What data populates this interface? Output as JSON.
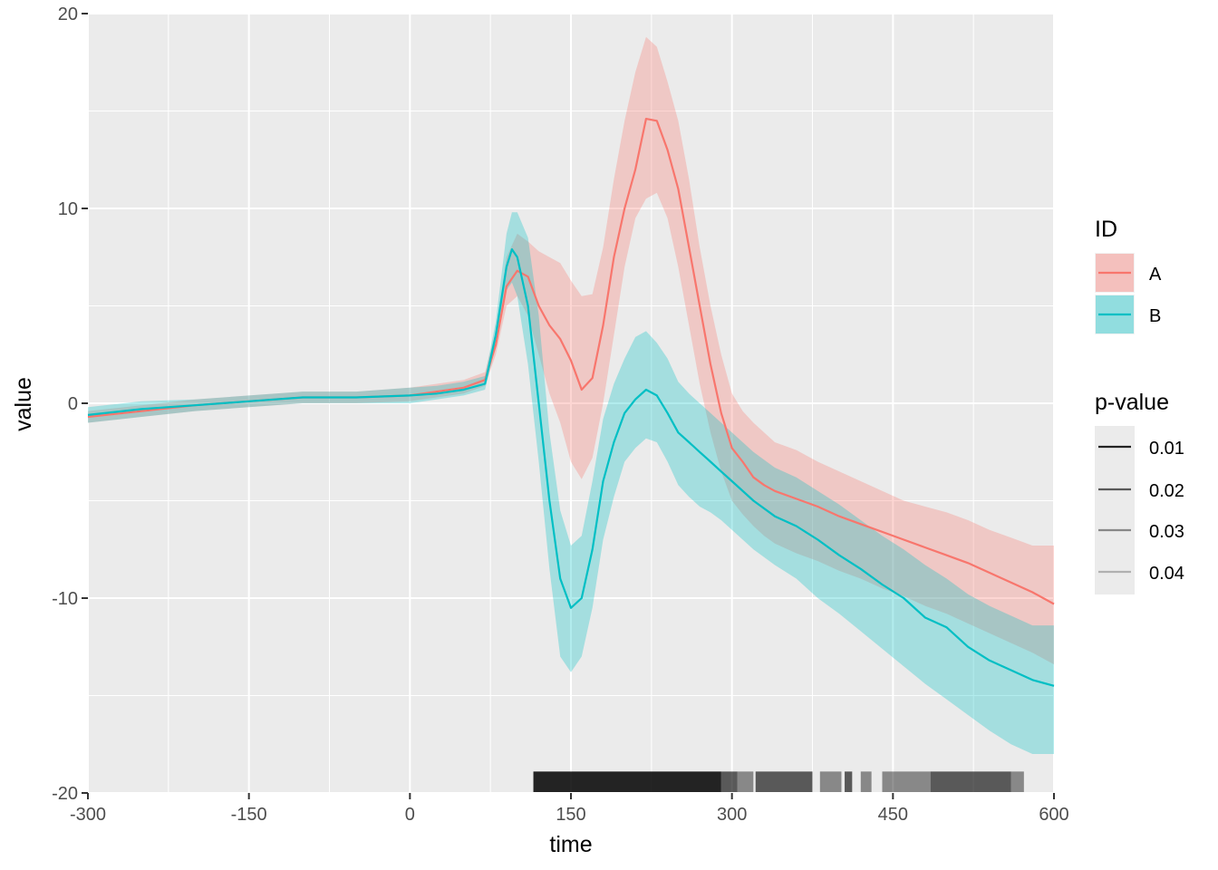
{
  "chart_data": {
    "type": "line",
    "xlabel": "time",
    "ylabel": "value",
    "xlim": [
      -300,
      600
    ],
    "ylim": [
      -20,
      20
    ],
    "x_ticks": [
      -300,
      -150,
      0,
      150,
      300,
      450,
      600
    ],
    "y_ticks": [
      -20,
      -10,
      0,
      10,
      20
    ],
    "grid": true,
    "legend_position": "right",
    "colors": {
      "A": "#F8766D",
      "B": "#00BFC4",
      "panel": "#EBEBEB",
      "grid": "#FFFFFF"
    },
    "series": [
      {
        "name": "A",
        "x": [
          -300,
          -250,
          -200,
          -150,
          -100,
          -50,
          0,
          25,
          50,
          70,
          80,
          90,
          100,
          110,
          120,
          130,
          140,
          150,
          160,
          170,
          180,
          190,
          200,
          210,
          220,
          230,
          240,
          250,
          260,
          270,
          280,
          290,
          300,
          310,
          320,
          330,
          340,
          360,
          380,
          400,
          420,
          440,
          460,
          480,
          500,
          520,
          540,
          560,
          580,
          600
        ],
        "value": [
          -0.7,
          -0.4,
          -0.1,
          0.1,
          0.3,
          0.3,
          0.4,
          0.6,
          0.8,
          1.2,
          3,
          6,
          6.8,
          6.5,
          5,
          4,
          3.3,
          2.2,
          0.7,
          1.3,
          4,
          7.5,
          10,
          12,
          14.6,
          14.5,
          13,
          11,
          8,
          5,
          2,
          -0.5,
          -2.3,
          -3,
          -3.8,
          -4.2,
          -4.5,
          -4.9,
          -5.3,
          -5.8,
          -6.2,
          -6.6,
          -7,
          -7.4,
          -7.8,
          -8.2,
          -8.7,
          -9.2,
          -9.7,
          -10.3
        ],
        "lower": [
          -1,
          -0.7,
          -0.4,
          -0.2,
          0,
          0,
          0.1,
          0.3,
          0.5,
          0.9,
          2.5,
          5,
          5.5,
          4.5,
          2.5,
          0.5,
          -1,
          -3,
          -3.9,
          -2.8,
          0,
          3.5,
          7,
          9.5,
          10.5,
          10.8,
          9.5,
          7,
          4,
          1,
          -1.5,
          -3.5,
          -5,
          -5.7,
          -6.3,
          -6.8,
          -7.2,
          -7.7,
          -8.1,
          -8.6,
          -9,
          -9.5,
          -9.9,
          -10.4,
          -10.8,
          -11.3,
          -11.8,
          -12.3,
          -12.8,
          -13.4
        ],
        "upper": [
          -0.4,
          -0.1,
          0.2,
          0.4,
          0.6,
          0.6,
          0.8,
          1,
          1.2,
          1.6,
          3.7,
          7.5,
          8.7,
          8.3,
          7.8,
          7.5,
          7.2,
          6.3,
          5.5,
          5.6,
          8,
          11.5,
          14.5,
          17,
          18.8,
          18.3,
          16.5,
          14.5,
          11.5,
          8,
          5,
          2.5,
          0.5,
          -0.4,
          -1,
          -1.5,
          -2,
          -2.4,
          -3,
          -3.5,
          -4,
          -4.5,
          -5,
          -5.3,
          -5.6,
          -6,
          -6.5,
          -6.9,
          -7.3,
          -7.3
        ]
      },
      {
        "name": "B",
        "x": [
          -300,
          -250,
          -200,
          -150,
          -100,
          -50,
          0,
          25,
          50,
          70,
          80,
          90,
          95,
          100,
          110,
          120,
          130,
          140,
          150,
          160,
          170,
          180,
          190,
          200,
          210,
          220,
          230,
          240,
          250,
          260,
          270,
          280,
          290,
          300,
          320,
          340,
          360,
          380,
          400,
          420,
          440,
          460,
          480,
          500,
          520,
          540,
          560,
          580,
          600
        ],
        "value": [
          -0.6,
          -0.3,
          -0.1,
          0.1,
          0.3,
          0.3,
          0.4,
          0.5,
          0.7,
          1,
          3.5,
          7,
          7.9,
          7.5,
          5,
          0,
          -5,
          -9,
          -10.5,
          -10,
          -7.5,
          -4,
          -2,
          -0.5,
          0.2,
          0.7,
          0.4,
          -0.5,
          -1.5,
          -2,
          -2.5,
          -3,
          -3.5,
          -4,
          -5,
          -5.8,
          -6.3,
          -7,
          -7.8,
          -8.5,
          -9.3,
          -10,
          -11,
          -11.5,
          -12.5,
          -13.2,
          -13.7,
          -14.2,
          -14.5
        ],
        "lower": [
          -1,
          -0.7,
          -0.4,
          -0.2,
          0,
          0,
          0,
          0.2,
          0.4,
          0.7,
          3,
          5.8,
          6.2,
          5.5,
          2,
          -3,
          -8.5,
          -13,
          -13.8,
          -13,
          -10.5,
          -7,
          -4.8,
          -3,
          -2.3,
          -1.8,
          -2,
          -3,
          -4.2,
          -4.8,
          -5.3,
          -5.6,
          -6,
          -6.5,
          -7.5,
          -8.3,
          -9,
          -10,
          -10.8,
          -11.7,
          -12.6,
          -13.5,
          -14.4,
          -15.2,
          -16,
          -16.8,
          -17.5,
          -18,
          -18
        ],
        "upper": [
          -0.2,
          0.1,
          0.2,
          0.4,
          0.6,
          0.6,
          0.8,
          0.9,
          1.1,
          1.4,
          4.2,
          8.7,
          9.8,
          9.8,
          8.5,
          4.5,
          -1.5,
          -5.5,
          -7.3,
          -6.8,
          -4,
          -0.8,
          1,
          2.3,
          3.4,
          3.7,
          3.1,
          2.3,
          1.1,
          0.5,
          0,
          -0.5,
          -1,
          -1.5,
          -2.5,
          -3.3,
          -3.8,
          -4.5,
          -5.2,
          -6,
          -6.8,
          -7.5,
          -8.3,
          -9,
          -9.8,
          -10.4,
          -10.9,
          -11.4,
          -11.4
        ]
      }
    ],
    "pvalue_rug": {
      "y": -19,
      "levels": [
        0.01,
        0.02,
        0.03,
        0.04
      ],
      "segments": [
        {
          "x": [
            115,
            290
          ],
          "p": 0.01
        },
        {
          "x": [
            290,
            305
          ],
          "p": 0.02
        },
        {
          "x": [
            305,
            320
          ],
          "p": 0.03
        },
        {
          "x": [
            322,
            375
          ],
          "p": 0.02
        },
        {
          "x": [
            382,
            402
          ],
          "p": 0.03
        },
        {
          "x": [
            405,
            412
          ],
          "p": 0.02
        },
        {
          "x": [
            420,
            430
          ],
          "p": 0.03
        },
        {
          "x": [
            440,
            485
          ],
          "p": 0.03
        },
        {
          "x": [
            485,
            560
          ],
          "p": 0.02
        },
        {
          "x": [
            560,
            572
          ],
          "p": 0.03
        }
      ]
    },
    "legend": {
      "id_title": "ID",
      "id_items": [
        "A",
        "B"
      ],
      "p_title": "p-value",
      "p_items": [
        "0.01",
        "0.02",
        "0.03",
        "0.04"
      ]
    }
  }
}
